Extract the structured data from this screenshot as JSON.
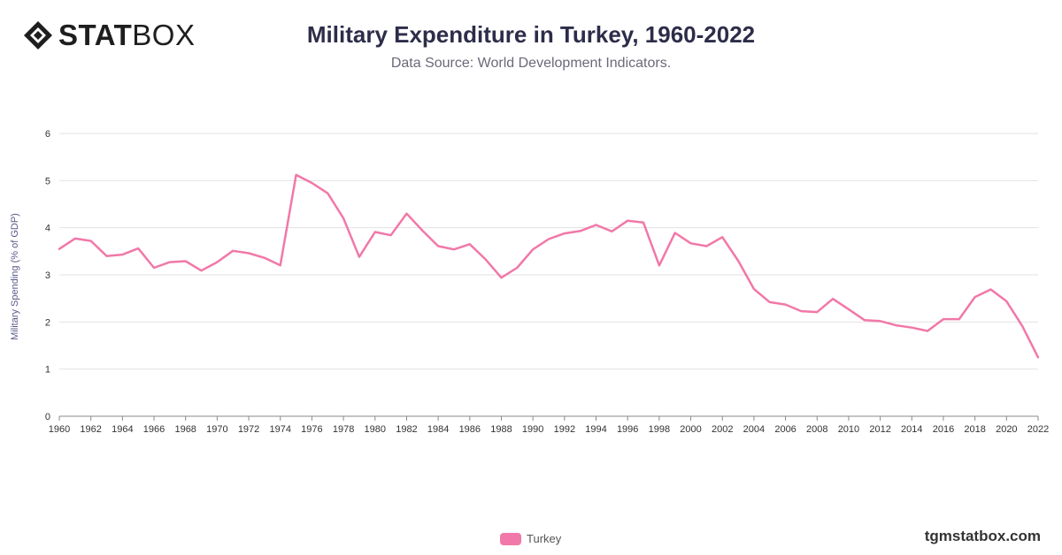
{
  "header": {
    "logo_bold": "STAT",
    "logo_light": "BOX",
    "title": "Military Expenditure in Turkey, 1960-2022",
    "subtitle": "Data Source: World Development Indicators."
  },
  "footer": {
    "site": "tgmstatbox.com"
  },
  "colors": {
    "series": "#f178a8",
    "grid": "#e2e2e2",
    "axis": "#8a8a8a",
    "text": "#2d2d4a"
  },
  "chart_data": {
    "type": "line",
    "title": "Military Expenditure in Turkey, 1960-2022",
    "subtitle": "Data Source: World Development Indicators.",
    "xlabel": "",
    "ylabel": "Military Spending (% of GDP)",
    "ylim": [
      0,
      6
    ],
    "xlim": [
      1960,
      2022
    ],
    "y_ticks": [
      "0",
      "1",
      "2",
      "3",
      "4",
      "5",
      "6"
    ],
    "x_ticks": [
      "1960",
      "1962",
      "1964",
      "1966",
      "1968",
      "1970",
      "1972",
      "1974",
      "1976",
      "1978",
      "1980",
      "1982",
      "1984",
      "1986",
      "1988",
      "1990",
      "1992",
      "1994",
      "1996",
      "1998",
      "2000",
      "2002",
      "2004",
      "2006",
      "2008",
      "2010",
      "2012",
      "2014",
      "2016",
      "2018",
      "2020",
      "2022"
    ],
    "grid": true,
    "legend_position": "bottom-center",
    "x": [
      1960,
      1961,
      1962,
      1963,
      1964,
      1965,
      1966,
      1967,
      1968,
      1969,
      1970,
      1971,
      1972,
      1973,
      1974,
      1975,
      1976,
      1977,
      1978,
      1979,
      1980,
      1981,
      1982,
      1983,
      1984,
      1985,
      1986,
      1987,
      1988,
      1989,
      1990,
      1991,
      1992,
      1993,
      1994,
      1995,
      1996,
      1997,
      1998,
      1999,
      2000,
      2001,
      2002,
      2003,
      2004,
      2005,
      2006,
      2007,
      2008,
      2009,
      2010,
      2011,
      2012,
      2013,
      2014,
      2015,
      2016,
      2017,
      2018,
      2019,
      2020,
      2021,
      2022
    ],
    "series": [
      {
        "name": "Turkey",
        "values": [
          3.55,
          3.77,
          3.72,
          3.4,
          3.43,
          3.56,
          3.15,
          3.27,
          3.29,
          3.09,
          3.27,
          3.51,
          3.46,
          3.36,
          3.2,
          5.12,
          4.95,
          4.73,
          4.2,
          3.38,
          3.91,
          3.84,
          4.3,
          3.94,
          3.61,
          3.54,
          3.65,
          3.33,
          2.94,
          3.15,
          3.54,
          3.76,
          3.88,
          3.93,
          4.06,
          3.92,
          4.15,
          4.11,
          3.2,
          3.89,
          3.67,
          3.61,
          3.8,
          3.3,
          2.7,
          2.42,
          2.37,
          2.23,
          2.21,
          2.49,
          2.27,
          2.04,
          2.02,
          1.93,
          1.88,
          1.81,
          2.06,
          2.06,
          2.53,
          2.69,
          2.44,
          1.91,
          1.25
        ]
      }
    ]
  }
}
